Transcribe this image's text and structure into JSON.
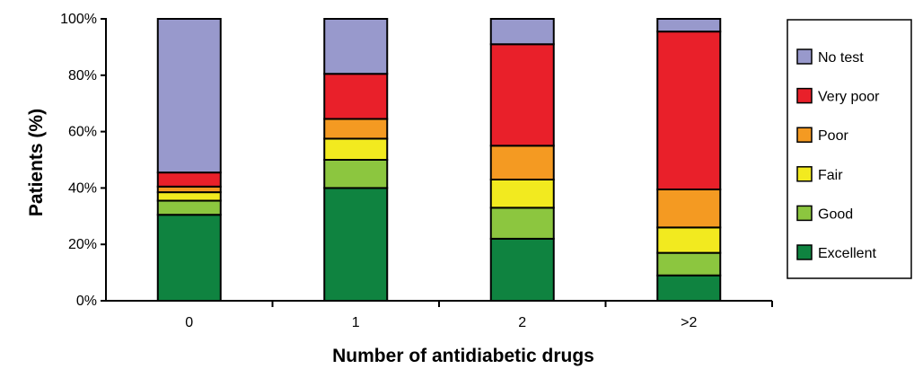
{
  "chart_data": {
    "type": "bar",
    "stacked": true,
    "percent": true,
    "xlabel": "Number of antidiabetic drugs",
    "ylabel": "Patients (%)",
    "ylim": [
      0,
      100
    ],
    "y_ticks": [
      "0%",
      "20%",
      "40%",
      "60%",
      "80%",
      "100%"
    ],
    "categories": [
      "0",
      "1",
      "2",
      ">2"
    ],
    "grid": false,
    "legend_position": "right",
    "series": [
      {
        "name": "Excellent",
        "color": "#0f8340",
        "values": [
          30.5,
          40,
          22,
          9
        ]
      },
      {
        "name": "Good",
        "color": "#8cc63f",
        "values": [
          5,
          10,
          11,
          8
        ]
      },
      {
        "name": "Fair",
        "color": "#f2ea1f",
        "values": [
          3,
          7.5,
          10,
          9
        ]
      },
      {
        "name": "Poor",
        "color": "#f49a22",
        "values": [
          2,
          7,
          12,
          13.5
        ]
      },
      {
        "name": "Very poor",
        "color": "#e9202a",
        "values": [
          5,
          16,
          36,
          56
        ]
      },
      {
        "name": "No test",
        "color": "#9899cc",
        "values": [
          54.5,
          19.5,
          9,
          4.5
        ]
      }
    ]
  }
}
